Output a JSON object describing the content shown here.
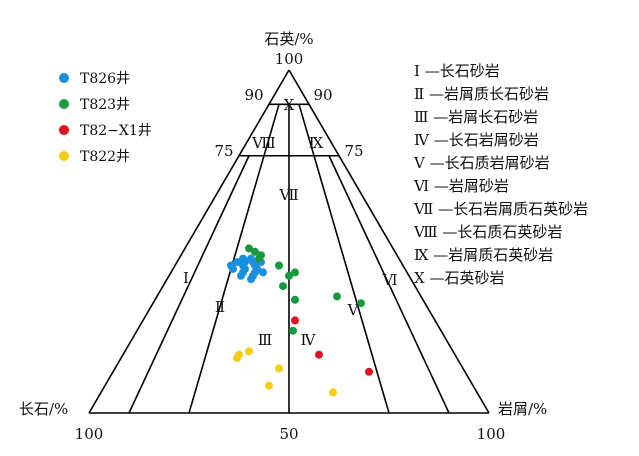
{
  "chart_data": {
    "type": "scatter",
    "subtype": "ternary",
    "axes": {
      "top": "石英/%",
      "left": "长石/%",
      "right": "岩屑/%"
    },
    "tick_labels": {
      "apex_top": "100",
      "bottom_left": "100",
      "bottom_mid": "50",
      "bottom_right": "100",
      "q90_left": "90",
      "q90_right": "90",
      "q75_left": "75",
      "q75_right": "75"
    },
    "zone_labels": [
      "Ⅰ",
      "Ⅱ",
      "Ⅲ",
      "Ⅳ",
      "Ⅴ",
      "Ⅵ",
      "Ⅶ",
      "Ⅷ",
      "Ⅸ",
      "Ⅹ"
    ],
    "zone_legend": [
      "Ⅰ —长石砂岩",
      "Ⅱ —岩屑质长石砂岩",
      "Ⅲ —岩屑长石砂岩",
      "Ⅳ —长石岩屑砂岩",
      "Ⅴ —长石质岩屑砂岩",
      "Ⅵ —岩屑砂岩",
      "Ⅶ —长石岩屑质石英砂岩",
      "Ⅷ —长石质石英砂岩",
      "Ⅸ —岩屑质石英砂岩",
      "Ⅹ —石英砂岩"
    ],
    "legend_position": "top-left",
    "series": [
      {
        "name": "T826井",
        "color": "#1a8fe0",
        "points": [
          {
            "Q": 44,
            "F": 39,
            "R": 17
          },
          {
            "Q": 42,
            "F": 40,
            "R": 18
          },
          {
            "Q": 45,
            "F": 37,
            "R": 18
          },
          {
            "Q": 43,
            "F": 37,
            "R": 20
          },
          {
            "Q": 40,
            "F": 42,
            "R": 18
          },
          {
            "Q": 41,
            "F": 38,
            "R": 21
          },
          {
            "Q": 44,
            "F": 41,
            "R": 15
          },
          {
            "Q": 42,
            "F": 43,
            "R": 15
          },
          {
            "Q": 44,
            "F": 35,
            "R": 21
          },
          {
            "Q": 40,
            "F": 39,
            "R": 21
          },
          {
            "Q": 43,
            "F": 40,
            "R": 17
          },
          {
            "Q": 39,
            "F": 40,
            "R": 21
          },
          {
            "Q": 41,
            "F": 41,
            "R": 18
          },
          {
            "Q": 45,
            "F": 39,
            "R": 16
          },
          {
            "Q": 42,
            "F": 37,
            "R": 21
          },
          {
            "Q": 43,
            "F": 43,
            "R": 14
          },
          {
            "Q": 41,
            "F": 36,
            "R": 23
          },
          {
            "Q": 44,
            "F": 37,
            "R": 19
          }
        ]
      },
      {
        "name": "T823井",
        "color": "#18993e",
        "points": [
          {
            "Q": 48,
            "F": 36,
            "R": 16
          },
          {
            "Q": 47,
            "F": 35,
            "R": 18
          },
          {
            "Q": 46,
            "F": 34,
            "R": 20
          },
          {
            "Q": 45,
            "F": 35,
            "R": 20
          },
          {
            "Q": 43,
            "F": 31,
            "R": 26
          },
          {
            "Q": 41,
            "F": 28,
            "R": 31
          },
          {
            "Q": 40,
            "F": 30,
            "R": 30
          },
          {
            "Q": 37,
            "F": 33,
            "R": 30
          },
          {
            "Q": 33,
            "F": 32,
            "R": 35
          },
          {
            "Q": 34,
            "F": 21,
            "R": 45
          },
          {
            "Q": 32,
            "F": 16,
            "R": 52
          },
          {
            "Q": 24,
            "F": 37,
            "R": 39
          }
        ]
      },
      {
        "name": "T82−X1井",
        "color": "#e01020",
        "points": [
          {
            "Q": 27,
            "F": 35,
            "R": 38
          },
          {
            "Q": 17,
            "F": 34,
            "R": 49
          },
          {
            "Q": 12,
            "F": 24,
            "R": 64
          }
        ]
      },
      {
        "name": "T822井",
        "color": "#f5cc10",
        "points": [
          {
            "Q": 17,
            "F": 54,
            "R": 29
          },
          {
            "Q": 16,
            "F": 55,
            "R": 29
          },
          {
            "Q": 18,
            "F": 51,
            "R": 31
          },
          {
            "Q": 13,
            "F": 46,
            "R": 41
          },
          {
            "Q": 8,
            "F": 51,
            "R": 41
          },
          {
            "Q": 6,
            "F": 36,
            "R": 58
          }
        ]
      }
    ]
  }
}
